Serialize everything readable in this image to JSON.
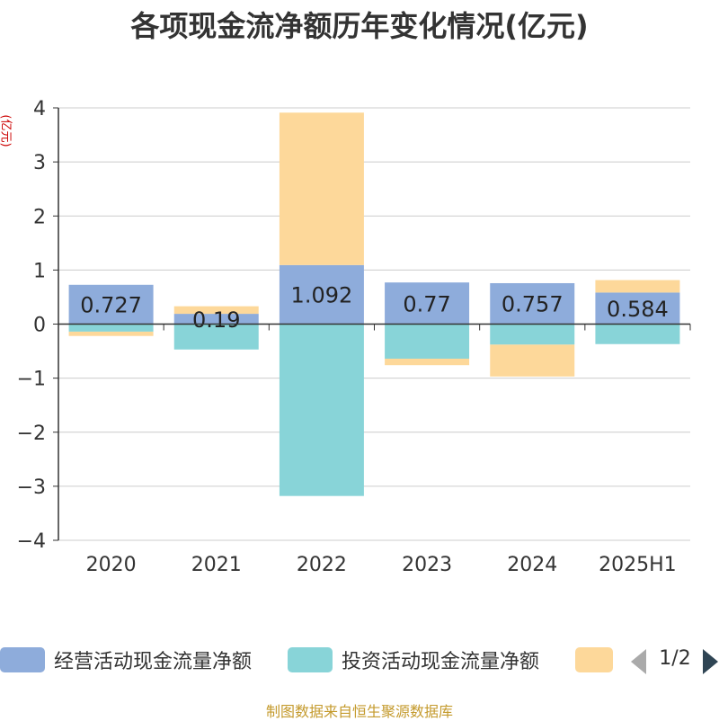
{
  "chart_data": {
    "type": "bar",
    "stacked": true,
    "title": "各项现金流净额历年变化情况(亿元)",
    "ylabel": "(亿元)",
    "categories": [
      "2020",
      "2021",
      "2022",
      "2023",
      "2024",
      "2025H1"
    ],
    "ylim": [
      -4,
      4
    ],
    "yticks": [
      4,
      3,
      2,
      1,
      0,
      -1,
      -2,
      -3,
      -4
    ],
    "grid": true,
    "series": [
      {
        "name": "经营活动现金流量净额",
        "color": "#8eacdb",
        "values": [
          0.727,
          0.19,
          1.092,
          0.77,
          0.757,
          0.584
        ],
        "labels": [
          "0.727",
          "0.19",
          "1.092",
          "0.77",
          "0.757",
          "0.584"
        ]
      },
      {
        "name": "投资活动现金流量净额",
        "color": "#88d4d8",
        "values": [
          -0.14,
          -0.47,
          -3.18,
          -0.64,
          -0.38,
          -0.37
        ]
      },
      {
        "name": "",
        "color": "#fdd89a",
        "values": [
          -0.08,
          0.14,
          2.82,
          -0.12,
          -0.59,
          0.23
        ]
      }
    ],
    "legend_position": "bottom"
  },
  "legend": {
    "items": [
      "经营活动现金流量净额",
      "投资活动现金流量净额",
      ""
    ],
    "page": "1/2"
  },
  "source": "制图数据来自恒生聚源数据库"
}
